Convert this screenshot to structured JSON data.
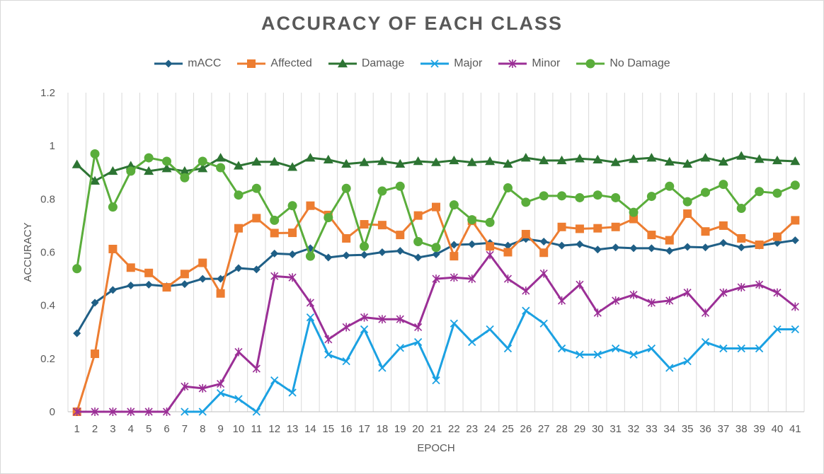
{
  "chart_data": {
    "type": "line",
    "title": "ACCURACY OF EACH CLASS",
    "xlabel": "EPOCH",
    "ylabel": "ACCURACY",
    "ylim": [
      0,
      1.2
    ],
    "yticks": [
      0,
      0.2,
      0.4,
      0.6,
      0.8,
      1,
      1.2
    ],
    "ytick_labels": [
      "0",
      "0.2",
      "0.4",
      "0.6",
      "0.8",
      "1",
      "1.2"
    ],
    "grid": "vertical",
    "legend_position": "top",
    "categories": [
      "1",
      "2",
      "3",
      "4",
      "5",
      "6",
      "7",
      "8",
      "9",
      "10",
      "11",
      "12",
      "13",
      "14",
      "15",
      "16",
      "17",
      "18",
      "19",
      "20",
      "21",
      "22",
      "23",
      "24",
      "25",
      "26",
      "27",
      "28",
      "29",
      "30",
      "31",
      "32",
      "33",
      "34",
      "35",
      "36",
      "37",
      "38",
      "39",
      "40",
      "41"
    ],
    "series": [
      {
        "name": "mACC",
        "color": "#1f5f86",
        "marker": "diamond",
        "values": [
          0.295,
          0.41,
          0.458,
          0.475,
          0.478,
          0.472,
          0.48,
          0.5,
          0.5,
          0.54,
          0.535,
          0.595,
          0.592,
          0.615,
          0.58,
          0.588,
          0.59,
          0.6,
          0.605,
          0.58,
          0.592,
          0.628,
          0.63,
          0.635,
          0.625,
          0.65,
          0.64,
          0.625,
          0.63,
          0.61,
          0.618,
          0.615,
          0.615,
          0.605,
          0.62,
          0.618,
          0.635,
          0.618,
          0.625,
          0.635,
          0.645
        ]
      },
      {
        "name": "Affected",
        "color": "#ed7d31",
        "marker": "square",
        "values": [
          0,
          0.218,
          0.612,
          0.542,
          0.522,
          0.468,
          0.518,
          0.56,
          0.445,
          0.69,
          0.728,
          0.672,
          0.673,
          0.775,
          0.74,
          0.652,
          0.705,
          0.702,
          0.665,
          0.738,
          0.77,
          0.585,
          0.718,
          0.622,
          0.6,
          0.668,
          0.598,
          0.695,
          0.688,
          0.69,
          0.695,
          0.725,
          0.665,
          0.645,
          0.745,
          0.678,
          0.7,
          0.652,
          0.628,
          0.658,
          0.72
        ]
      },
      {
        "name": "Damage",
        "color": "#2d7433",
        "marker": "triangle",
        "values": [
          0.93,
          0.868,
          0.905,
          0.925,
          0.905,
          0.915,
          0.905,
          0.915,
          0.955,
          0.925,
          0.94,
          0.94,
          0.92,
          0.955,
          0.948,
          0.932,
          0.938,
          0.942,
          0.932,
          0.942,
          0.938,
          0.945,
          0.938,
          0.942,
          0.932,
          0.955,
          0.945,
          0.945,
          0.952,
          0.948,
          0.938,
          0.95,
          0.955,
          0.94,
          0.932,
          0.955,
          0.94,
          0.962,
          0.95,
          0.945,
          0.942
        ]
      },
      {
        "name": "Major",
        "color": "#1ba1e2",
        "marker": "x",
        "values": [
          null,
          null,
          null,
          null,
          null,
          null,
          0,
          0,
          0.07,
          0.048,
          0,
          0.118,
          0.072,
          0.355,
          0.215,
          0.19,
          0.31,
          0.165,
          0.24,
          0.262,
          0.118,
          0.332,
          0.262,
          0.31,
          0.238,
          0.38,
          0.332,
          0.238,
          0.215,
          0.215,
          0.238,
          0.215,
          0.238,
          0.165,
          0.19,
          0.262,
          0.238,
          0.238,
          0.238,
          0.31,
          0.31
        ]
      },
      {
        "name": "Minor",
        "color": "#9b2f96",
        "marker": "star",
        "values": [
          0,
          0,
          0,
          0,
          0,
          0,
          0.095,
          0.088,
          0.105,
          0.225,
          0.162,
          0.51,
          0.505,
          0.41,
          0.272,
          0.318,
          0.355,
          0.348,
          0.348,
          0.318,
          0.5,
          0.505,
          0.5,
          0.59,
          0.5,
          0.455,
          0.52,
          0.418,
          0.478,
          0.372,
          0.418,
          0.44,
          0.41,
          0.418,
          0.448,
          0.372,
          0.448,
          0.468,
          0.478,
          0.448,
          0.395
        ]
      },
      {
        "name": "No Damage",
        "color": "#5aad3b",
        "marker": "circle",
        "values": [
          0.538,
          0.97,
          0.77,
          0.905,
          0.955,
          0.942,
          0.88,
          0.942,
          0.918,
          0.815,
          0.84,
          0.72,
          0.775,
          0.585,
          0.73,
          0.84,
          0.622,
          0.83,
          0.848,
          0.64,
          0.618,
          0.778,
          0.722,
          0.712,
          0.842,
          0.788,
          0.812,
          0.812,
          0.805,
          0.815,
          0.805,
          0.75,
          0.81,
          0.848,
          0.79,
          0.825,
          0.855,
          0.765,
          0.828,
          0.822,
          0.852
        ]
      }
    ]
  }
}
